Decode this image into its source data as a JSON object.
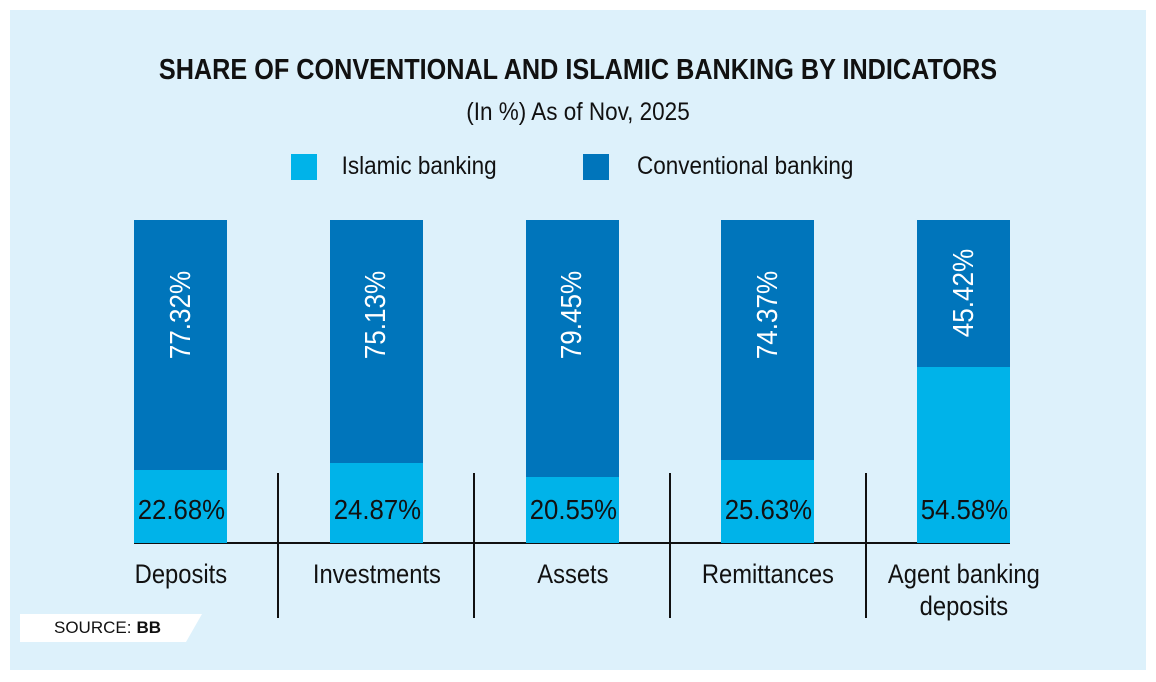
{
  "title": "SHARE OF CONVENTIONAL AND ISLAMIC BANKING BY INDICATORS",
  "subtitle": "(In %) As of Nov, 2025",
  "legend": [
    {
      "label": "Islamic banking",
      "color": "#00b3e9"
    },
    {
      "label": "Conventional banking",
      "color": "#0075bb"
    }
  ],
  "source": {
    "label": "SOURCE:",
    "value": "BB"
  },
  "colors": {
    "islamic": "#00b3e9",
    "conventional": "#0075bb",
    "panel_background": "#ddf1fb",
    "frame_background": "#ffffff",
    "text": "#111111",
    "bar_value_light_text": "#111111",
    "bar_value_dark_text": "#ffffff"
  },
  "chart_data": {
    "type": "bar",
    "stacked": true,
    "orientation": "vertical",
    "title": "SHARE OF CONVENTIONAL AND ISLAMIC BANKING BY INDICATORS",
    "subtitle": "(In %) As of Nov, 2025",
    "categories": [
      "Deposits",
      "Investments",
      "Assets",
      "Remittances",
      "Agent banking deposits"
    ],
    "series": [
      {
        "name": "Islamic banking",
        "color": "#00b3e9",
        "values": [
          22.68,
          24.87,
          20.55,
          25.63,
          54.58
        ]
      },
      {
        "name": "Conventional banking",
        "color": "#0075bb",
        "values": [
          77.32,
          75.13,
          79.45,
          74.37,
          45.42
        ]
      }
    ],
    "value_format": "0.00%",
    "ylim": [
      0,
      100
    ],
    "grid": false,
    "legend_position": "top",
    "source": "BB"
  }
}
